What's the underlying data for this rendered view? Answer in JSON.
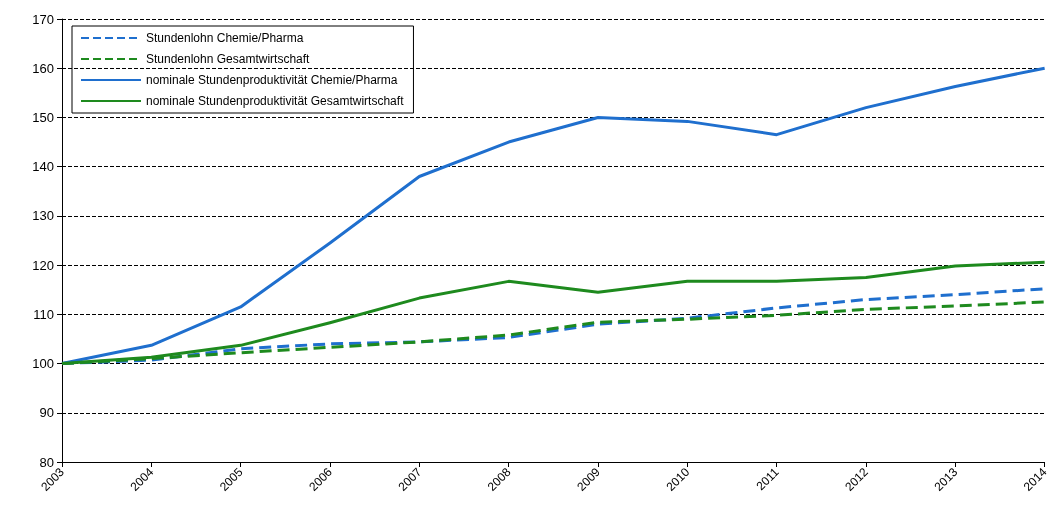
{
  "chart_data": {
    "type": "line",
    "categories": [
      "2003",
      "2004",
      "2005",
      "2006",
      "2007",
      "2008",
      "2009",
      "2010",
      "2011",
      "2012",
      "2013",
      "2014"
    ],
    "series": [
      {
        "name": "Stundenlohn Chemie/Pharma",
        "color": "#1f6fce",
        "line_style": "dashed",
        "values": [
          100,
          100.7,
          103,
          104,
          104.4,
          105.3,
          108,
          109.2,
          111.3,
          113,
          114,
          115.2
        ]
      },
      {
        "name": "Stundenlohn Gesamtwirtschaft",
        "color": "#1e8a1e",
        "line_style": "dashed",
        "values": [
          100,
          101,
          102.2,
          103.3,
          104.4,
          105.8,
          108.4,
          109,
          109.8,
          111,
          111.7,
          112.5
        ]
      },
      {
        "name": "nominale Stundenproduktivität Chemie/Pharma",
        "color": "#1f6fce",
        "line_style": "solid",
        "values": [
          100,
          103.7,
          111.5,
          124.5,
          138,
          145,
          150,
          149.2,
          146.5,
          152,
          156.3,
          160
        ]
      },
      {
        "name": "nominale Stundenproduktivität Gesamtwirtschaft",
        "color": "#1e8a1e",
        "line_style": "solid",
        "values": [
          100,
          101.3,
          103.7,
          108.3,
          113.3,
          116.7,
          114.5,
          116.7,
          116.7,
          117.5,
          119.8,
          120.6
        ]
      }
    ],
    "ylim": [
      80,
      170
    ],
    "yticks": [
      80,
      90,
      100,
      110,
      120,
      130,
      140,
      150,
      160,
      170
    ],
    "grid": "y",
    "legend": "top left",
    "marker": "none"
  }
}
